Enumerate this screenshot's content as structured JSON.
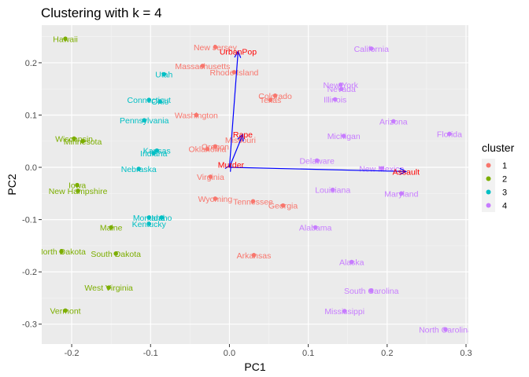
{
  "chart_data": {
    "type": "scatter",
    "title": "Clustering with k = 4",
    "xlabel": "PC1",
    "ylabel": "PC2",
    "xlim": [
      -0.238,
      0.303
    ],
    "ylim": [
      -0.338,
      0.272
    ],
    "x_ticks": [
      -0.2,
      -0.1,
      0.0,
      0.1,
      0.2,
      0.3
    ],
    "x_tick_labels": [
      "-0.2",
      "-0.1",
      "0.0",
      "0.1",
      "0.2",
      "0.3"
    ],
    "y_ticks": [
      -0.3,
      -0.2,
      -0.1,
      0.0,
      0.1,
      0.2
    ],
    "y_tick_labels": [
      "-0.3",
      "-0.2",
      "-0.1",
      "0.0",
      "0.1",
      "0.2"
    ],
    "grid": true,
    "legend": {
      "title": "cluster",
      "placement": "right",
      "entries": [
        {
          "label": "1",
          "color": "#F8766D"
        },
        {
          "label": "2",
          "color": "#7CAE00"
        },
        {
          "label": "3",
          "color": "#00BFC4"
        },
        {
          "label": "4",
          "color": "#C77CFF"
        }
      ]
    },
    "series": [
      {
        "cluster": "1",
        "color": "#F8766D",
        "points": [
          {
            "label": "New Jersey",
            "x": -0.018,
            "y": 0.23
          },
          {
            "label": "Massachusetts",
            "x": -0.034,
            "y": 0.194
          },
          {
            "label": "Rhode Island",
            "x": 0.006,
            "y": 0.182
          },
          {
            "label": "Colorado",
            "x": 0.058,
            "y": 0.137
          },
          {
            "label": "Texas",
            "x": 0.052,
            "y": 0.129
          },
          {
            "label": "Washington",
            "x": -0.042,
            "y": 0.1
          },
          {
            "label": "Missouri",
            "x": 0.014,
            "y": 0.053
          },
          {
            "label": "Oregon",
            "x": -0.018,
            "y": 0.04
          },
          {
            "label": "Oklahoma",
            "x": -0.028,
            "y": 0.035
          },
          {
            "label": "Virginia",
            "x": -0.024,
            "y": -0.018
          },
          {
            "label": "Wyoming",
            "x": -0.018,
            "y": -0.06
          },
          {
            "label": "Tennessee",
            "x": 0.03,
            "y": -0.065
          },
          {
            "label": "Georgia",
            "x": 0.068,
            "y": -0.073
          },
          {
            "label": "Arkansas",
            "x": 0.031,
            "y": -0.168
          }
        ]
      },
      {
        "cluster": "2",
        "color": "#7CAE00",
        "points": [
          {
            "label": "Hawaii",
            "x": -0.208,
            "y": 0.246
          },
          {
            "label": "Wisconsin",
            "x": -0.197,
            "y": 0.055
          },
          {
            "label": "Minnesota",
            "x": -0.186,
            "y": 0.05
          },
          {
            "label": "Iowa",
            "x": -0.193,
            "y": -0.034
          },
          {
            "label": "New Hampshire",
            "x": -0.192,
            "y": -0.045
          },
          {
            "label": "Maine",
            "x": -0.15,
            "y": -0.115
          },
          {
            "label": "North Dakota",
            "x": -0.213,
            "y": -0.161
          },
          {
            "label": "South Dakota",
            "x": -0.144,
            "y": -0.165
          },
          {
            "label": "West Virginia",
            "x": -0.153,
            "y": -0.23
          },
          {
            "label": "Vermont",
            "x": -0.208,
            "y": -0.274
          }
        ]
      },
      {
        "cluster": "3",
        "color": "#00BFC4",
        "points": [
          {
            "label": "Utah",
            "x": -0.083,
            "y": 0.178
          },
          {
            "label": "Connecticut",
            "x": -0.102,
            "y": 0.129
          },
          {
            "label": "Ohio",
            "x": -0.088,
            "y": 0.126
          },
          {
            "label": "Pennsylvania",
            "x": -0.108,
            "y": 0.09
          },
          {
            "label": "Kansas",
            "x": -0.092,
            "y": 0.032
          },
          {
            "label": "Indiana",
            "x": -0.096,
            "y": 0.027
          },
          {
            "label": "Nebraska",
            "x": -0.115,
            "y": -0.003
          },
          {
            "label": "Montana",
            "x": -0.102,
            "y": -0.096
          },
          {
            "label": "Idaho",
            "x": -0.086,
            "y": -0.096
          },
          {
            "label": "Kentucky",
            "x": -0.102,
            "y": -0.108
          }
        ]
      },
      {
        "cluster": "4",
        "color": "#C77CFF",
        "points": [
          {
            "label": "California",
            "x": 0.18,
            "y": 0.227
          },
          {
            "label": "New York",
            "x": 0.141,
            "y": 0.158
          },
          {
            "label": "Nevada",
            "x": 0.142,
            "y": 0.15
          },
          {
            "label": "Illinois",
            "x": 0.134,
            "y": 0.13
          },
          {
            "label": "Arizona",
            "x": 0.208,
            "y": 0.088
          },
          {
            "label": "Michigan",
            "x": 0.145,
            "y": 0.06
          },
          {
            "label": "Florida",
            "x": 0.279,
            "y": 0.064
          },
          {
            "label": "Delaware",
            "x": 0.111,
            "y": 0.013
          },
          {
            "label": "New Mexico",
            "x": 0.193,
            "y": -0.002
          },
          {
            "label": "Maryland",
            "x": 0.218,
            "y": -0.05
          },
          {
            "label": "Louisiana",
            "x": 0.131,
            "y": -0.043
          },
          {
            "label": "Alabama",
            "x": 0.109,
            "y": -0.115
          },
          {
            "label": "Alaska",
            "x": 0.155,
            "y": -0.181
          },
          {
            "label": "South Carolina",
            "x": 0.18,
            "y": -0.236
          },
          {
            "label": "Mississippi",
            "x": 0.146,
            "y": -0.275
          },
          {
            "label": "North Carolina",
            "x": 0.274,
            "y": -0.31
          }
        ]
      }
    ],
    "loadings": {
      "color": "#0000FF",
      "label_color": "#FF0000",
      "vectors": [
        {
          "label": "UrbanPop",
          "x": 0.011,
          "y": 0.222
        },
        {
          "label": "Rape",
          "x": 0.017,
          "y": 0.063
        },
        {
          "label": "Murder",
          "x": 0.002,
          "y": 0.005
        },
        {
          "label": "Assault",
          "x": 0.224,
          "y": -0.008
        }
      ]
    }
  }
}
